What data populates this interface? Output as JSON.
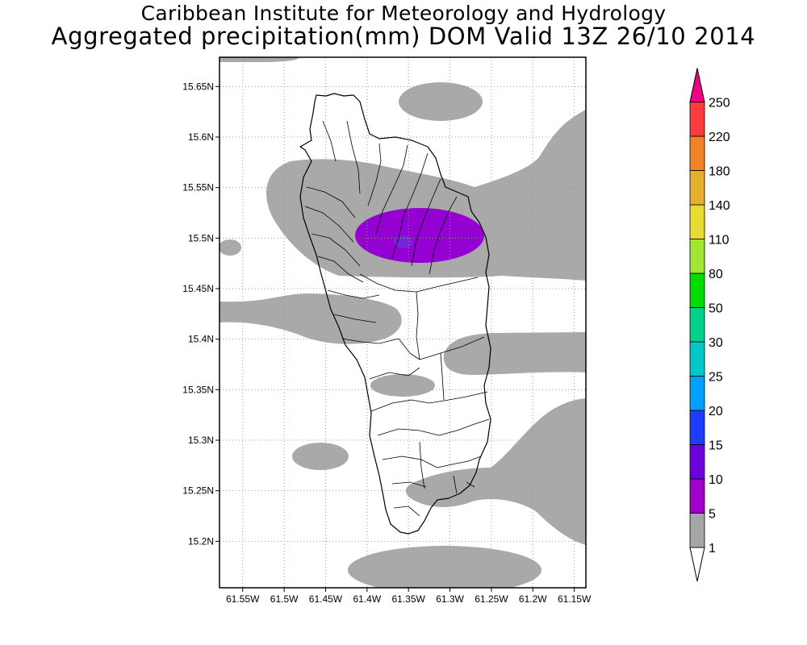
{
  "header": {
    "institution": "Caribbean Institute for Meteorology and Hydrology",
    "product": "Aggregated precipitation(mm) DOM Valid 13Z 26/10 2014"
  },
  "map": {
    "lat_ticks": [
      "15.65N",
      "15.6N",
      "15.55N",
      "15.5N",
      "15.45N",
      "15.4N",
      "15.35N",
      "15.3N",
      "15.25N",
      "15.2N"
    ],
    "lon_ticks": [
      "61.55W",
      "61.5W",
      "61.45W",
      "61.4W",
      "61.35W",
      "61.3W",
      "61.25W",
      "61.2W",
      "61.15W"
    ],
    "lat_range": [
      15.154,
      15.679
    ],
    "lon_range": [
      -61.578,
      -61.136
    ],
    "grid": true,
    "colors": {
      "shade_1_5": "#a9a9a9",
      "shade_5_10": "#9500d2",
      "shade_10_15": "#7b22dc"
    }
  },
  "colorbar": {
    "levels": [
      "1",
      "5",
      "10",
      "15",
      "20",
      "25",
      "30",
      "50",
      "80",
      "110",
      "140",
      "180",
      "220",
      "250"
    ],
    "colors": [
      "#ffffff",
      "#a6a6a6",
      "#a000c8",
      "#6e00dc",
      "#1e3cff",
      "#00a0ff",
      "#00c8c8",
      "#00d28c",
      "#00dc00",
      "#a0e632",
      "#e6dc32",
      "#e6af2d",
      "#f08228",
      "#fa3c3c",
      "#f00082"
    ]
  }
}
